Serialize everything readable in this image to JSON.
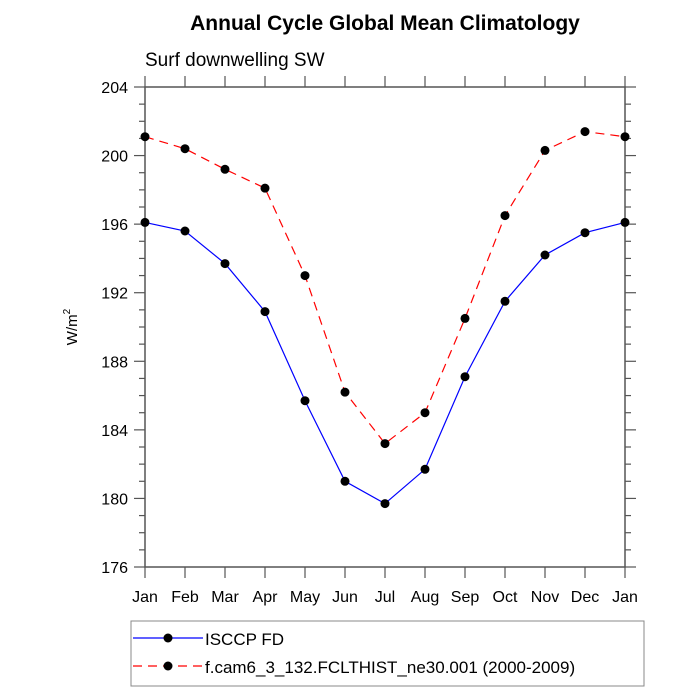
{
  "chart_data": {
    "type": "line",
    "title": "Annual Cycle Global Mean Climatology",
    "subtitle": "Surf downwelling SW",
    "xlabel": "",
    "ylabel": "W/m",
    "ylabel_superscript": "2",
    "categories": [
      "Jan",
      "Feb",
      "Mar",
      "Apr",
      "May",
      "Jun",
      "Jul",
      "Aug",
      "Sep",
      "Oct",
      "Nov",
      "Dec",
      "Jan"
    ],
    "ylim": [
      176,
      204
    ],
    "y_ticks": [
      176,
      180,
      184,
      188,
      192,
      196,
      200,
      204
    ],
    "y_minor_step": 1,
    "grid": false,
    "legend_position": "bottom",
    "series": [
      {
        "name": "ISCCP FD",
        "color": "#0000ff",
        "dash": "solid",
        "marker": "filled-circle",
        "values": [
          196.1,
          195.6,
          193.7,
          190.9,
          185.7,
          181.0,
          179.7,
          181.7,
          187.1,
          191.5,
          194.2,
          195.5,
          196.1
        ]
      },
      {
        "name": "f.cam6_3_132.FCLTHIST_ne30.001 (2000-2009)",
        "color": "#ff0000",
        "dash": "dashed",
        "marker": "filled-circle",
        "values": [
          201.1,
          200.4,
          199.2,
          198.1,
          193.0,
          186.2,
          183.2,
          185.0,
          190.5,
          196.5,
          200.3,
          201.4,
          201.1
        ]
      }
    ]
  }
}
